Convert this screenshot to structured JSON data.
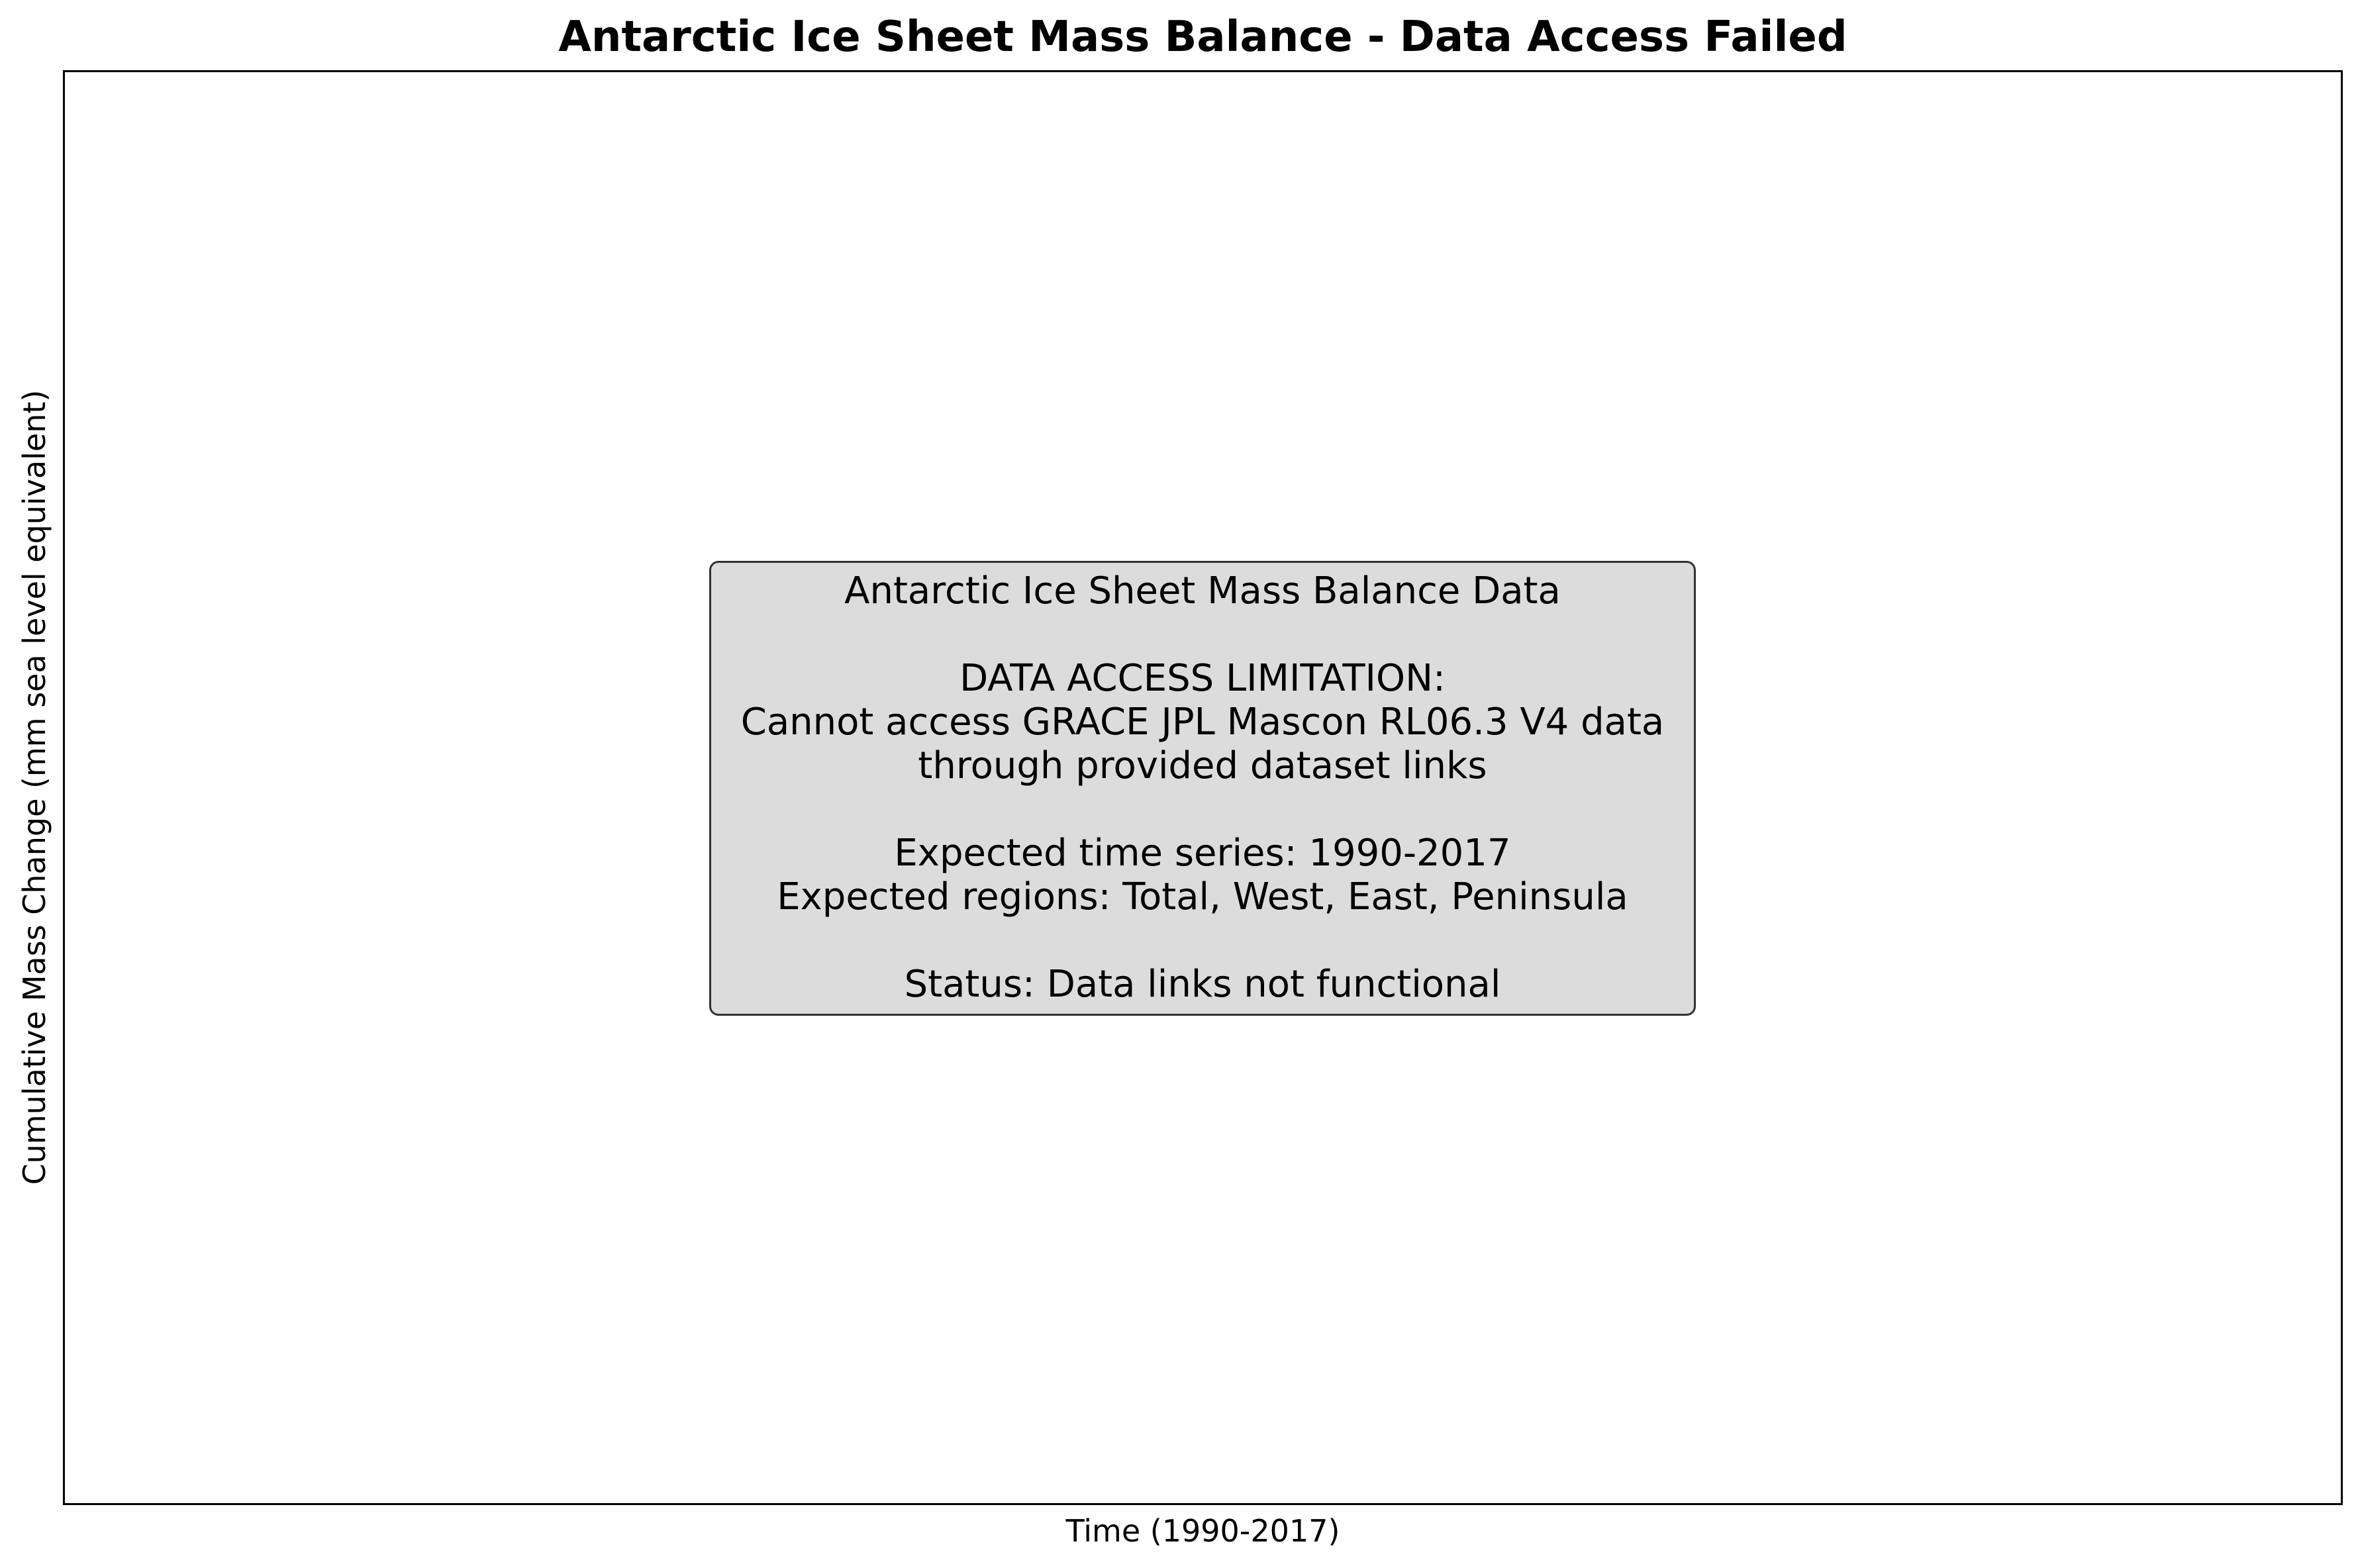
{
  "chart_data": {
    "type": "line",
    "title": "Antarctic Ice Sheet Mass Balance - Data Access Failed",
    "xlabel": "Time (1990-2017)",
    "ylabel": "Cumulative Mass Change (mm sea level equivalent)",
    "series": [],
    "grid": false,
    "annotation": {
      "lines": [
        "Antarctic Ice Sheet Mass Balance Data",
        "",
        "DATA ACCESS LIMITATION:",
        "Cannot access GRACE JPL Mascon RL06.3 V4 data",
        "through provided dataset links",
        "",
        "Expected time series: 1990-2017",
        "Expected regions: Total, West, East, Peninsula",
        "",
        "Status: Data links not functional"
      ],
      "background_color": "#dcdcdc",
      "border_color": "#333333"
    }
  }
}
